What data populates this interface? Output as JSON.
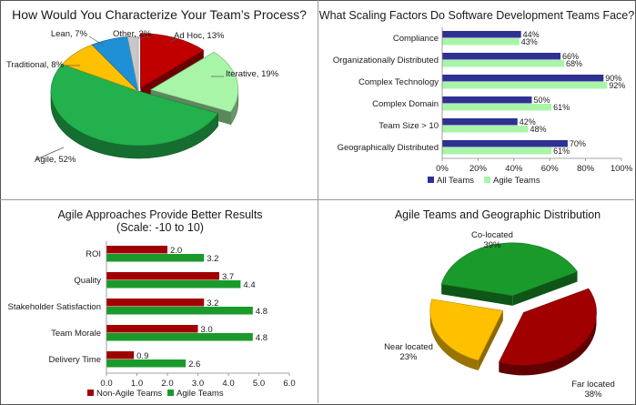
{
  "chart_data": [
    {
      "type": "pie",
      "title": "How Would You Characterize Your Team’s Process?",
      "slices": [
        {
          "label": "Ad Hoc, 13%",
          "value": 13,
          "color": "#c00000"
        },
        {
          "label": "Iterative, 19%",
          "value": 19,
          "color": "#a8f5a8"
        },
        {
          "label": "Agile, 52%",
          "value": 52,
          "color": "#22b14c"
        },
        {
          "label": "Traditional, 8%",
          "value": 8,
          "color": "#ffc000"
        },
        {
          "label": "Lean, 7%",
          "value": 7,
          "color": "#1f8fd6"
        },
        {
          "label": "Other, 2%",
          "value": 2,
          "color": "#c8c8c8"
        }
      ]
    },
    {
      "type": "bar",
      "orientation": "horizontal",
      "title": "What Scaling Factors Do Software Development Teams Face?",
      "categories": [
        "Compliance",
        "Organizationally Distributed",
        "Complex Technology",
        "Complex Domain",
        "Team Size > 10",
        "Geographically Distributed"
      ],
      "series": [
        {
          "name": "All Teams",
          "values": [
            44,
            66,
            90,
            50,
            42,
            70
          ],
          "labels": [
            "44%",
            "66%",
            "90%",
            "50%",
            "42%",
            "70%"
          ],
          "color": "#2e3192"
        },
        {
          "name": "Agile Teams",
          "values": [
            43,
            68,
            92,
            61,
            48,
            61
          ],
          "labels": [
            "43%",
            "68%",
            "92%",
            "61%",
            "48%",
            "61%"
          ],
          "color": "#a8f5a8"
        }
      ],
      "xlim": [
        0,
        100
      ],
      "ticks": [
        "0%",
        "20%",
        "40%",
        "60%",
        "80%",
        "100%"
      ],
      "legend": "bottom"
    },
    {
      "type": "bar",
      "orientation": "horizontal",
      "title": "Agile Approaches Provide Better Results",
      "subtitle": "(Scale: -10 to 10)",
      "categories": [
        "ROI",
        "Quality",
        "Stakeholder Satisfaction",
        "Team Morale",
        "Delivery Time"
      ],
      "series": [
        {
          "name": "Non-Agile Teams",
          "values": [
            2.0,
            3.7,
            3.2,
            3.0,
            0.9
          ],
          "labels": [
            "2.0",
            "3.7",
            "3.2",
            "3.0",
            "0.9"
          ],
          "color": "#a00000"
        },
        {
          "name": "Agile Teams",
          "values": [
            3.2,
            4.4,
            4.8,
            4.8,
            2.6
          ],
          "labels": [
            "3.2",
            "4.4",
            "4.8",
            "4.8",
            "2.6"
          ],
          "color": "#1a9a2a"
        }
      ],
      "xlim": [
        0,
        6
      ],
      "ticks": [
        "0.0",
        "1.0",
        "2.0",
        "3.0",
        "4.0",
        "5.0",
        "6.0"
      ],
      "legend": "bottom"
    },
    {
      "type": "pie",
      "title": "Agile Teams and Geographic Distribution",
      "slices": [
        {
          "label": "Co-located",
          "pct": "39%",
          "value": 39,
          "color": "#1a9a2a"
        },
        {
          "label": "Far located",
          "pct": "38%",
          "value": 38,
          "color": "#a00000"
        },
        {
          "label": "Near located",
          "pct": "23%",
          "value": 23,
          "color": "#ffc000"
        }
      ]
    }
  ]
}
